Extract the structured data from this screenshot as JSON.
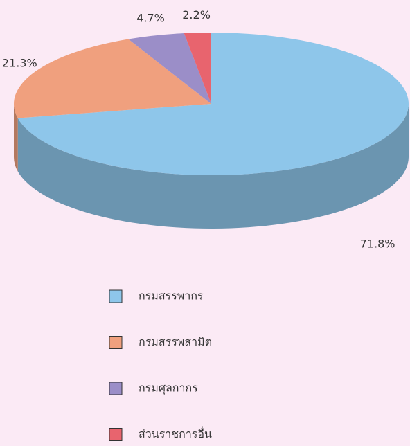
{
  "chart_data": {
    "type": "pie",
    "categories": [
      "กรมสรรพากร",
      "กรมสรรพสามิต",
      "กรมศุลกากร",
      "ส่วนราชการอื่น"
    ],
    "values": [
      71.8,
      21.3,
      4.7,
      2.2
    ],
    "value_labels": [
      "71.8%",
      "21.3%",
      "4.7%",
      "2.2%"
    ],
    "colors": [
      "#8ec6ea",
      "#f0a07e",
      "#9b8ec8",
      "#e8646e"
    ]
  }
}
